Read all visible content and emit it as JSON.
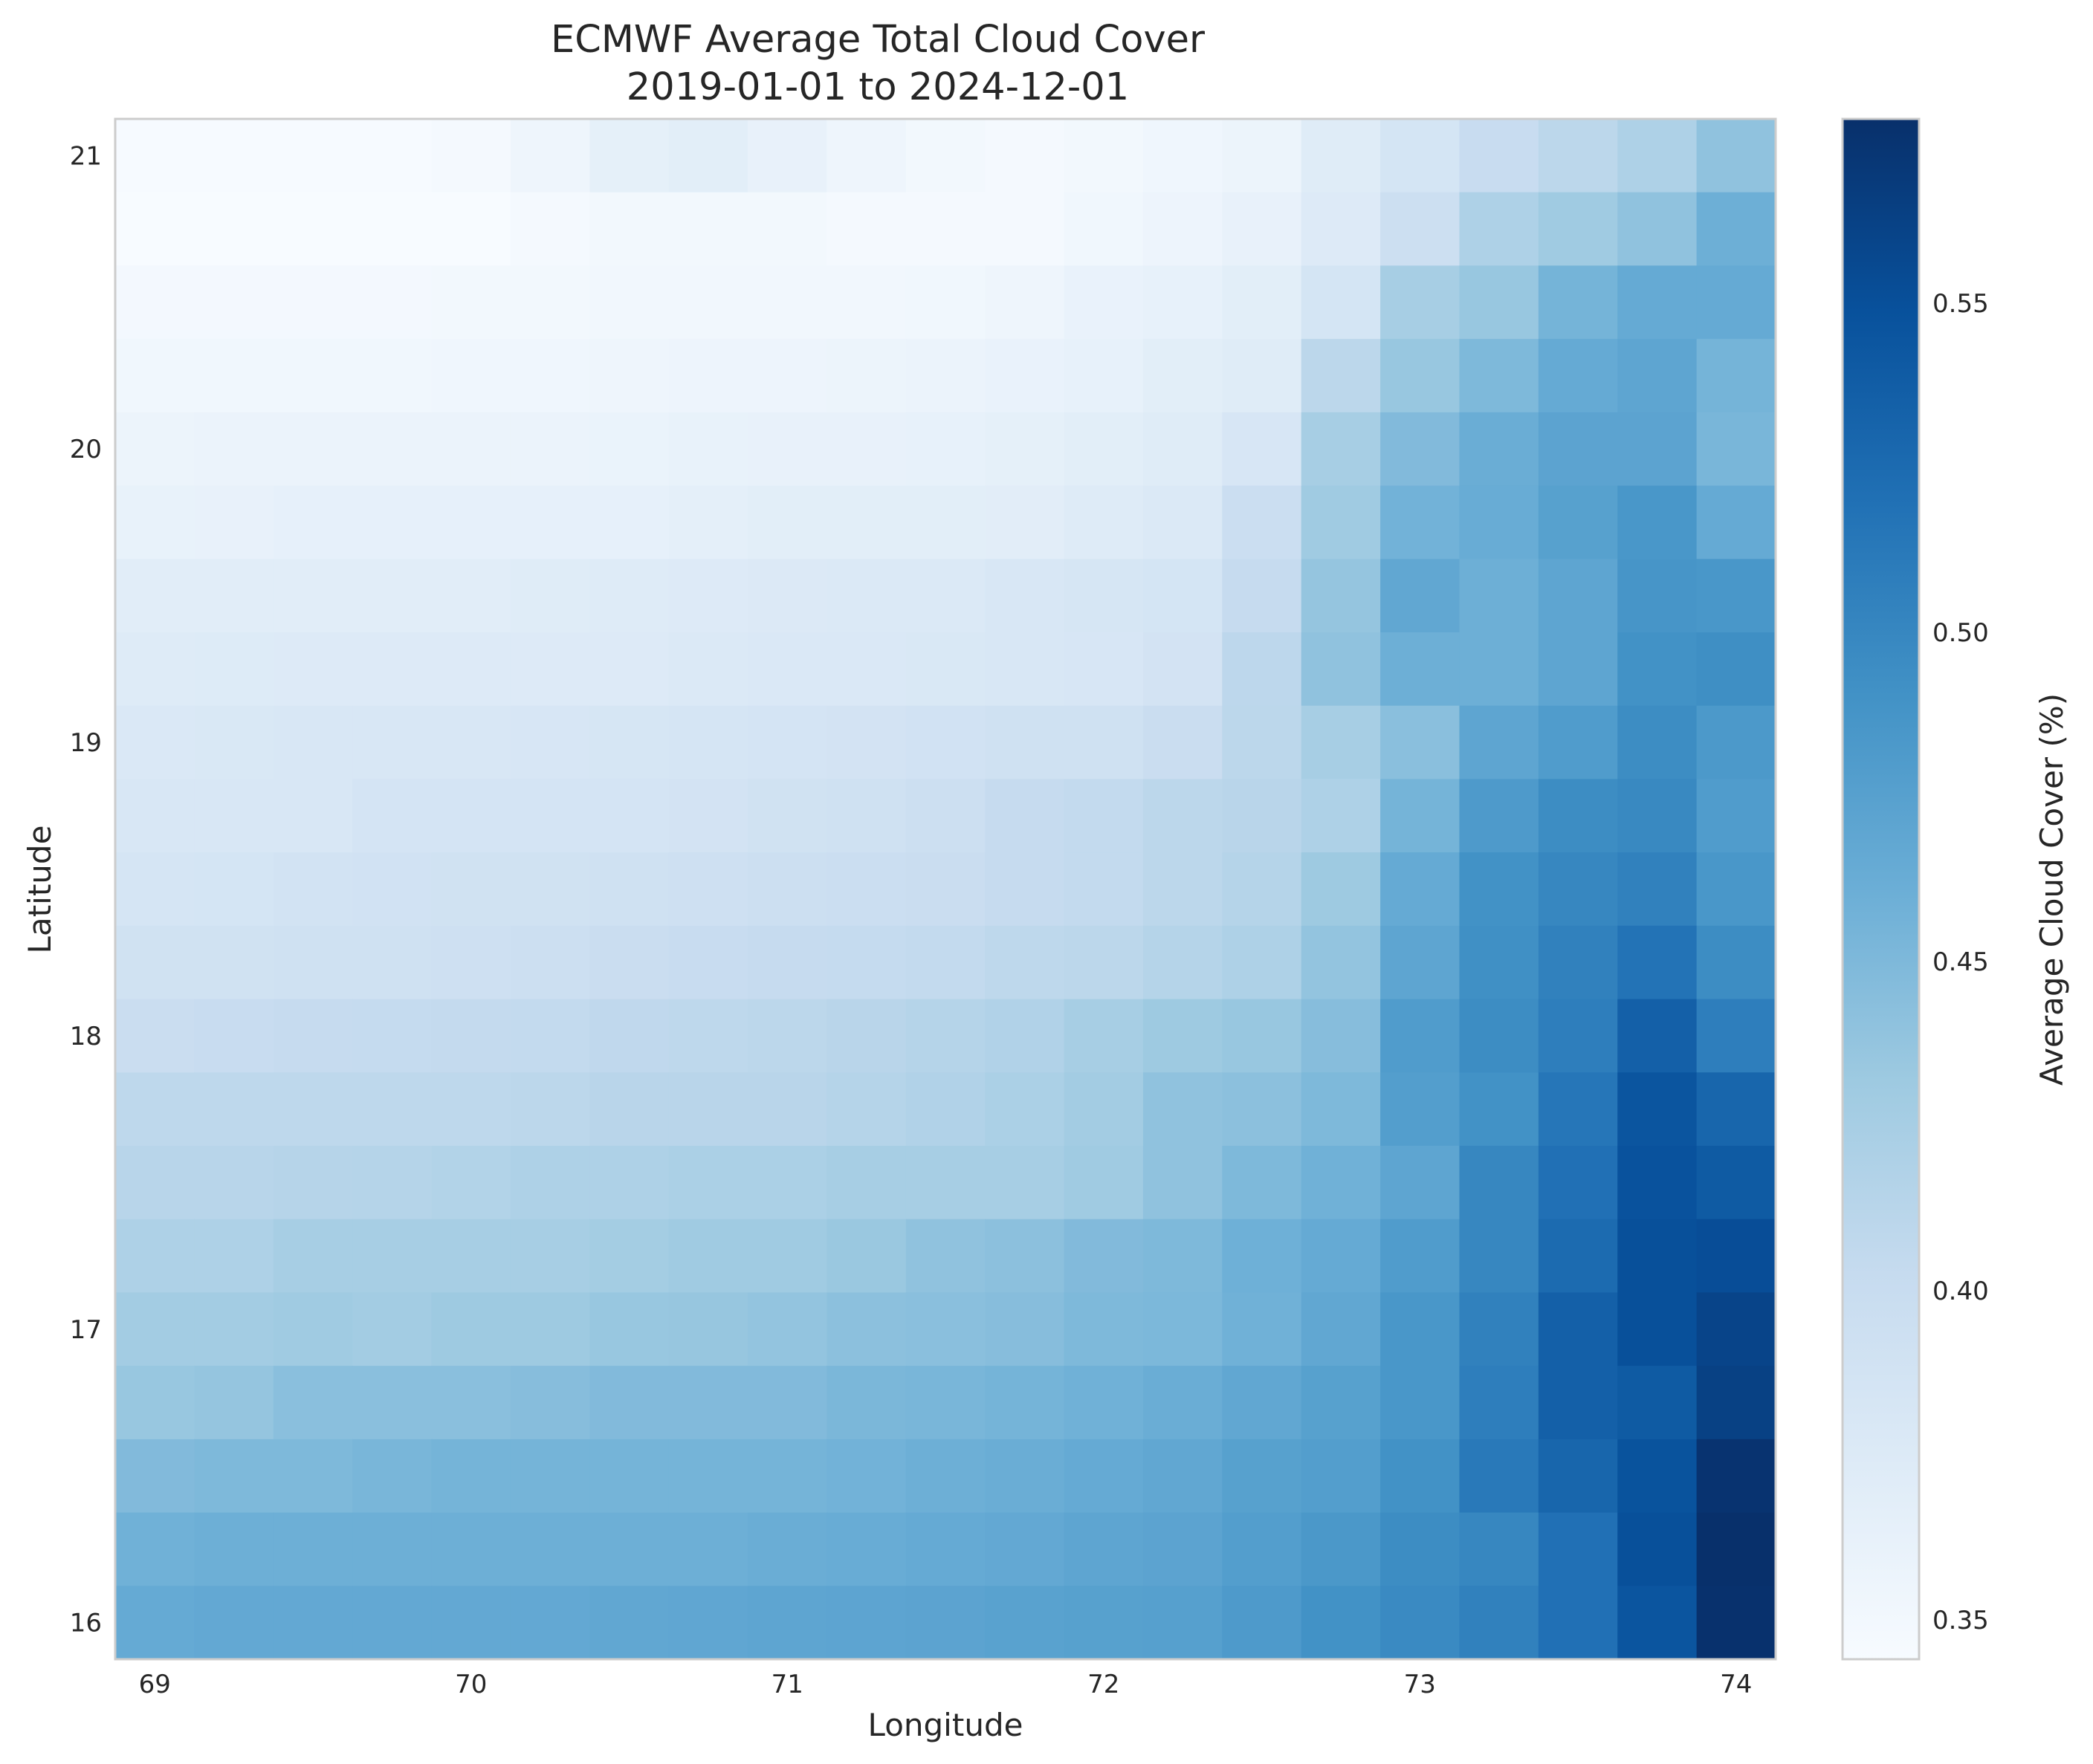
{
  "chart_data": {
    "type": "heatmap",
    "title": "ECMWF Average Total Cloud Cover",
    "subtitle": "2019-01-01 to 2024-12-01",
    "xlabel": "Longitude",
    "ylabel": "Latitude",
    "colorbar_label": "Average Cloud Cover (%)",
    "colormap": "Blues",
    "grid": false,
    "x_ticks": [
      "69",
      "70",
      "71",
      "72",
      "73",
      "74"
    ],
    "y_ticks": [
      "21",
      "20",
      "19",
      "18",
      "17",
      "16"
    ],
    "colorbar_ticks": [
      "0.55",
      "0.50",
      "0.45",
      "0.40",
      "0.35"
    ],
    "xlim": [
      68.875,
      74.125
    ],
    "ylim": [
      15.875,
      21.125
    ],
    "vmin": 0.344,
    "vmax": 0.578,
    "x_centers": [
      69.0,
      69.25,
      69.5,
      69.75,
      70.0,
      70.25,
      70.5,
      70.75,
      71.0,
      71.25,
      71.5,
      71.75,
      72.0,
      72.25,
      72.5,
      72.75,
      73.0,
      73.25,
      73.5,
      73.75,
      74.0
    ],
    "y_centers": [
      21.0,
      20.75,
      20.5,
      20.25,
      20.0,
      19.75,
      19.5,
      19.25,
      19.0,
      18.75,
      18.5,
      18.25,
      18.0,
      17.75,
      17.5,
      17.25,
      17.0,
      16.75,
      16.5,
      16.25,
      16.0
    ],
    "values": [
      [
        0.345,
        0.345,
        0.345,
        0.345,
        0.347,
        0.355,
        0.365,
        0.368,
        0.362,
        0.355,
        0.35,
        0.347,
        0.35,
        0.353,
        0.357,
        0.372,
        0.385,
        0.4,
        0.41,
        0.42,
        0.44
      ],
      [
        0.344,
        0.344,
        0.344,
        0.344,
        0.344,
        0.348,
        0.35,
        0.35,
        0.35,
        0.347,
        0.347,
        0.347,
        0.352,
        0.356,
        0.362,
        0.375,
        0.395,
        0.42,
        0.43,
        0.44,
        0.46
      ],
      [
        0.349,
        0.349,
        0.349,
        0.349,
        0.35,
        0.35,
        0.351,
        0.351,
        0.351,
        0.351,
        0.352,
        0.355,
        0.36,
        0.363,
        0.368,
        0.385,
        0.425,
        0.435,
        0.455,
        0.465,
        0.465
      ],
      [
        0.352,
        0.352,
        0.352,
        0.352,
        0.353,
        0.353,
        0.355,
        0.356,
        0.356,
        0.357,
        0.358,
        0.36,
        0.363,
        0.368,
        0.372,
        0.41,
        0.435,
        0.45,
        0.465,
        0.47,
        0.455
      ],
      [
        0.357,
        0.358,
        0.358,
        0.358,
        0.358,
        0.358,
        0.359,
        0.361,
        0.362,
        0.362,
        0.363,
        0.365,
        0.368,
        0.372,
        0.382,
        0.425,
        0.448,
        0.462,
        0.472,
        0.472,
        0.453
      ],
      [
        0.361,
        0.362,
        0.364,
        0.364,
        0.364,
        0.364,
        0.364,
        0.366,
        0.368,
        0.368,
        0.368,
        0.369,
        0.373,
        0.377,
        0.397,
        0.43,
        0.457,
        0.463,
        0.475,
        0.485,
        0.465
      ],
      [
        0.37,
        0.37,
        0.37,
        0.37,
        0.37,
        0.372,
        0.373,
        0.375,
        0.376,
        0.377,
        0.377,
        0.38,
        0.383,
        0.385,
        0.402,
        0.437,
        0.468,
        0.46,
        0.47,
        0.487,
        0.485
      ],
      [
        0.373,
        0.374,
        0.375,
        0.375,
        0.375,
        0.375,
        0.375,
        0.377,
        0.378,
        0.378,
        0.379,
        0.38,
        0.382,
        0.387,
        0.409,
        0.44,
        0.46,
        0.46,
        0.47,
        0.49,
        0.493
      ],
      [
        0.378,
        0.379,
        0.38,
        0.381,
        0.381,
        0.382,
        0.383,
        0.384,
        0.386,
        0.387,
        0.389,
        0.391,
        0.392,
        0.398,
        0.41,
        0.425,
        0.443,
        0.47,
        0.48,
        0.495,
        0.483
      ],
      [
        0.38,
        0.381,
        0.381,
        0.386,
        0.386,
        0.386,
        0.386,
        0.387,
        0.39,
        0.392,
        0.395,
        0.402,
        0.405,
        0.41,
        0.412,
        0.42,
        0.455,
        0.482,
        0.495,
        0.498,
        0.48
      ],
      [
        0.384,
        0.385,
        0.388,
        0.389,
        0.39,
        0.39,
        0.392,
        0.393,
        0.395,
        0.397,
        0.398,
        0.402,
        0.405,
        0.41,
        0.415,
        0.432,
        0.465,
        0.49,
        0.5,
        0.505,
        0.485
      ],
      [
        0.39,
        0.39,
        0.391,
        0.392,
        0.393,
        0.395,
        0.398,
        0.4,
        0.402,
        0.403,
        0.405,
        0.408,
        0.41,
        0.415,
        0.42,
        0.438,
        0.47,
        0.492,
        0.505,
        0.518,
        0.495
      ],
      [
        0.398,
        0.4,
        0.402,
        0.403,
        0.404,
        0.405,
        0.407,
        0.408,
        0.41,
        0.412,
        0.415,
        0.418,
        0.425,
        0.432,
        0.435,
        0.445,
        0.48,
        0.495,
        0.508,
        0.535,
        0.508
      ],
      [
        0.408,
        0.408,
        0.408,
        0.408,
        0.408,
        0.41,
        0.412,
        0.412,
        0.412,
        0.415,
        0.418,
        0.422,
        0.428,
        0.44,
        0.442,
        0.45,
        0.478,
        0.49,
        0.515,
        0.545,
        0.53
      ],
      [
        0.413,
        0.413,
        0.414,
        0.415,
        0.417,
        0.42,
        0.42,
        0.422,
        0.422,
        0.425,
        0.425,
        0.425,
        0.43,
        0.44,
        0.45,
        0.458,
        0.47,
        0.5,
        0.52,
        0.548,
        0.54
      ],
      [
        0.42,
        0.42,
        0.425,
        0.425,
        0.425,
        0.425,
        0.427,
        0.43,
        0.43,
        0.434,
        0.44,
        0.442,
        0.448,
        0.45,
        0.459,
        0.465,
        0.48,
        0.5,
        0.525,
        0.55,
        0.552
      ],
      [
        0.428,
        0.428,
        0.43,
        0.428,
        0.432,
        0.432,
        0.435,
        0.436,
        0.438,
        0.442,
        0.443,
        0.445,
        0.45,
        0.451,
        0.458,
        0.468,
        0.485,
        0.505,
        0.535,
        0.55,
        0.56
      ],
      [
        0.435,
        0.437,
        0.443,
        0.443,
        0.443,
        0.445,
        0.448,
        0.448,
        0.448,
        0.452,
        0.453,
        0.455,
        0.458,
        0.462,
        0.468,
        0.475,
        0.485,
        0.508,
        0.535,
        0.54,
        0.563
      ],
      [
        0.448,
        0.45,
        0.45,
        0.453,
        0.455,
        0.455,
        0.455,
        0.455,
        0.455,
        0.457,
        0.46,
        0.462,
        0.465,
        0.468,
        0.475,
        0.478,
        0.49,
        0.512,
        0.53,
        0.547,
        0.575
      ],
      [
        0.458,
        0.46,
        0.46,
        0.46,
        0.46,
        0.46,
        0.46,
        0.46,
        0.462,
        0.463,
        0.465,
        0.467,
        0.47,
        0.472,
        0.478,
        0.484,
        0.495,
        0.5,
        0.52,
        0.55,
        0.578
      ],
      [
        0.465,
        0.467,
        0.467,
        0.467,
        0.467,
        0.467,
        0.468,
        0.469,
        0.47,
        0.471,
        0.472,
        0.474,
        0.475,
        0.476,
        0.482,
        0.49,
        0.497,
        0.505,
        0.52,
        0.545,
        0.577
      ]
    ]
  }
}
